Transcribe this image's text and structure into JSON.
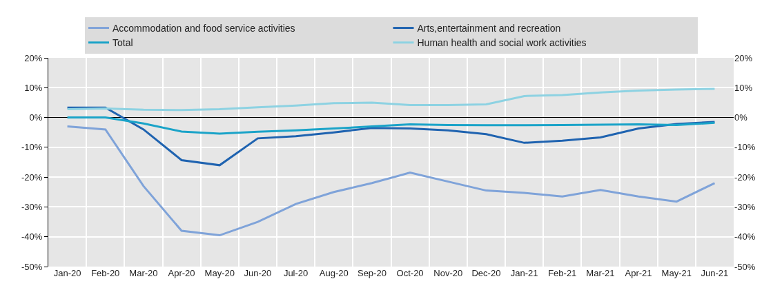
{
  "chart_data": {
    "type": "line",
    "categories": [
      "Jan-20",
      "Feb-20",
      "Mar-20",
      "Apr-20",
      "May-20",
      "Jun-20",
      "Jul-20",
      "Aug-20",
      "Sep-20",
      "Oct-20",
      "Nov-20",
      "Dec-20",
      "Jan-21",
      "Feb-21",
      "Mar-21",
      "Apr-21",
      "May-21",
      "Jun-21"
    ],
    "series": [
      {
        "name": "Accommodation and food service activities",
        "color": "#7fa3d9",
        "values": [
          -3,
          -4,
          -23,
          -38,
          -39.5,
          -35,
          -29,
          -25,
          -22,
          -18.5,
          -21.5,
          -24.5,
          -25.3,
          -26.5,
          -24.3,
          -26.5,
          -28.2,
          -22
        ]
      },
      {
        "name": "Arts,entertainment and recreation",
        "color": "#1f63b0",
        "values": [
          3.3,
          3.3,
          -4,
          -14.3,
          -16,
          -7,
          -6.3,
          -5,
          -3.5,
          -3.7,
          -4.3,
          -5.6,
          -8.5,
          -7.8,
          -6.7,
          -3.7,
          -2.2,
          -1.5
        ]
      },
      {
        "name": "Total",
        "color": "#1aa3c8",
        "values": [
          0,
          0,
          -2,
          -4.7,
          -5.4,
          -4.8,
          -4.3,
          -3.7,
          -3,
          -2.3,
          -2.5,
          -2.6,
          -2.6,
          -2.5,
          -2.4,
          -2.3,
          -2.5,
          -1.8
        ]
      },
      {
        "name": "Human health and social work activities",
        "color": "#8dd2e2",
        "values": [
          2.8,
          3,
          2.6,
          2.5,
          2.8,
          3.4,
          4,
          4.8,
          5,
          4.2,
          4.2,
          4.4,
          7.2,
          7.5,
          8.4,
          9,
          9.4,
          9.6
        ]
      }
    ],
    "ylim": [
      -50,
      20
    ],
    "yticks": [
      {
        "value": -50,
        "label": "-50%"
      },
      {
        "value": -40,
        "label": "-40%"
      },
      {
        "value": -30,
        "label": "-30%"
      },
      {
        "value": -20,
        "label": "-20%"
      },
      {
        "value": -10,
        "label": "-10%"
      },
      {
        "value": 0,
        "label": "0%"
      },
      {
        "value": 10,
        "label": "10%"
      },
      {
        "value": 20,
        "label": "20%"
      }
    ],
    "y2lim": [
      -50,
      20
    ],
    "y2ticks": [
      {
        "value": -50,
        "label": "-50%"
      },
      {
        "value": -40,
        "label": "-40%"
      },
      {
        "value": -30,
        "label": "-30%"
      },
      {
        "value": -20,
        "label": "-20%"
      },
      {
        "value": -10,
        "label": "-10%"
      },
      {
        "value": 0,
        "label": "0%"
      },
      {
        "value": 10,
        "label": "10%"
      },
      {
        "value": 20,
        "label": "20%"
      }
    ],
    "grid": true,
    "legend": "top",
    "marker": "none",
    "line_style": "solid"
  }
}
